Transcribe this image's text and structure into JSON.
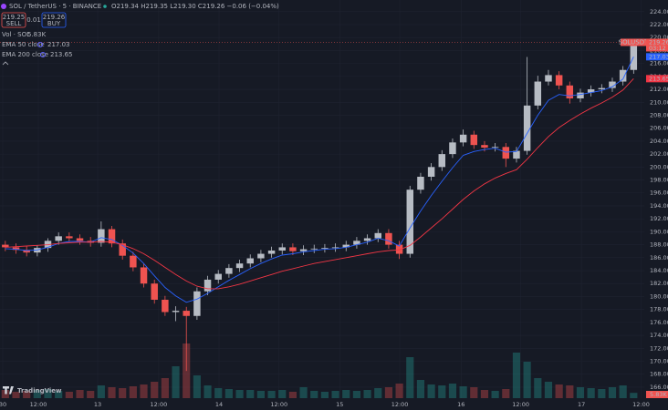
{
  "header": {
    "symbol": "SOL / TetherUS · 5 · BINANCE",
    "o_label": "O",
    "o": "219.34",
    "h_label": "H",
    "h": "219.35",
    "l_label": "L",
    "l": "219.30",
    "c_label": "C",
    "c": "219.26",
    "change": "−0.06 (−0.04%)"
  },
  "trade": {
    "sell_price": "219.25",
    "sell": "SELL",
    "spread": "0.01",
    "buy_price": "219.26",
    "buy": "BUY"
  },
  "branding": "TradingView",
  "chart_data": {
    "type": "candlestick",
    "symbol_tag": "SOLUSDT",
    "countdown": "03:12",
    "up_color": "#b7bcc4",
    "down_color": "#ef5350",
    "open": [
      188.0,
      187.6,
      187.2,
      186.8,
      187.5,
      188.6,
      189.3,
      189.0,
      188.6,
      188.3,
      190.4,
      188.2,
      186.3,
      184.5,
      182.0,
      179.5,
      177.6,
      177.8,
      177.0,
      180.8,
      182.6,
      183.5,
      184.4,
      185.1,
      185.9,
      186.6,
      187.1,
      187.6,
      187.0,
      187.3,
      187.4,
      187.5,
      187.6,
      188.0,
      188.6,
      189.0,
      189.8,
      188.0,
      186.6,
      196.5,
      198.5,
      200.0,
      202.0,
      203.8,
      205.0,
      203.4,
      203.0,
      203.1,
      201.3,
      202.5,
      209.5,
      213.2,
      214.2,
      212.6,
      210.6,
      211.5,
      212.0,
      212.2,
      213.2,
      215.0
    ],
    "high": [
      188.6,
      188.2,
      187.8,
      187.9,
      189.0,
      189.9,
      189.9,
      189.6,
      189.2,
      191.6,
      190.9,
      188.8,
      186.9,
      185.1,
      182.6,
      180.1,
      178.5,
      178.4,
      181.4,
      183.2,
      184.1,
      185.0,
      185.7,
      186.5,
      187.2,
      187.7,
      188.2,
      188.2,
      187.9,
      188.0,
      188.1,
      188.2,
      188.6,
      189.2,
      189.6,
      190.4,
      190.4,
      188.6,
      197.1,
      199.1,
      200.6,
      202.6,
      204.4,
      205.8,
      205.6,
      204.0,
      203.7,
      203.7,
      203.1,
      217.0,
      214.1,
      215.0,
      214.8,
      213.2,
      212.1,
      212.6,
      212.8,
      213.8,
      215.6,
      219.8
    ],
    "low": [
      187.0,
      186.6,
      186.2,
      186.2,
      186.9,
      188.0,
      188.4,
      188.0,
      187.7,
      187.7,
      187.6,
      185.7,
      183.9,
      181.4,
      178.9,
      177.0,
      176.2,
      168.5,
      176.4,
      180.2,
      182.0,
      182.9,
      183.8,
      184.5,
      185.3,
      186.0,
      186.5,
      186.4,
      186.4,
      186.7,
      186.8,
      186.9,
      187.0,
      187.4,
      188.0,
      188.4,
      187.4,
      185.8,
      186.0,
      195.9,
      197.9,
      199.4,
      201.4,
      203.2,
      202.8,
      202.4,
      202.4,
      200.0,
      200.7,
      201.9,
      208.9,
      212.6,
      212.0,
      209.8,
      210.0,
      210.9,
      211.4,
      211.6,
      212.6,
      214.4
    ],
    "close": [
      187.6,
      187.2,
      186.8,
      187.5,
      188.6,
      189.3,
      189.0,
      188.6,
      188.3,
      190.4,
      188.2,
      186.3,
      184.5,
      182.0,
      179.5,
      177.6,
      177.8,
      177.0,
      180.8,
      182.6,
      183.5,
      184.4,
      185.1,
      185.9,
      186.6,
      187.1,
      187.6,
      187.0,
      187.3,
      187.4,
      187.5,
      187.6,
      188.0,
      188.6,
      189.0,
      189.8,
      188.0,
      186.6,
      196.5,
      198.5,
      200.0,
      202.0,
      203.8,
      205.0,
      203.4,
      203.0,
      203.1,
      201.3,
      202.5,
      209.5,
      213.2,
      214.2,
      212.6,
      210.6,
      211.5,
      212.0,
      212.2,
      213.2,
      215.0,
      219.26
    ],
    "series": [
      {
        "name": "EMA 50 close",
        "color": "#2962ff",
        "values": [
          187.4,
          187.3,
          187.1,
          187.2,
          187.6,
          188.2,
          188.5,
          188.5,
          188.4,
          189.1,
          188.8,
          187.9,
          186.7,
          185.1,
          183.2,
          181.4,
          180.1,
          179.1,
          179.6,
          180.5,
          181.5,
          182.5,
          183.4,
          184.3,
          185.1,
          185.8,
          186.4,
          186.6,
          186.9,
          187.1,
          187.3,
          187.4,
          187.6,
          188.0,
          188.4,
          189.0,
          188.6,
          187.8,
          190.6,
          193.2,
          195.6,
          197.8,
          199.9,
          201.8,
          202.4,
          202.7,
          202.9,
          202.3,
          202.4,
          205.2,
          208.0,
          210.3,
          211.2,
          211.0,
          211.2,
          211.5,
          211.8,
          212.4,
          213.6,
          217.03
        ]
      },
      {
        "name": "EMA 200 close",
        "color": "#f23645",
        "values": [
          187.6,
          187.7,
          187.8,
          187.9,
          188.0,
          188.2,
          188.3,
          188.4,
          188.4,
          188.5,
          188.4,
          188.0,
          187.4,
          186.6,
          185.6,
          184.5,
          183.4,
          182.4,
          181.6,
          181.2,
          181.2,
          181.5,
          181.9,
          182.4,
          182.9,
          183.4,
          183.9,
          184.3,
          184.7,
          185.1,
          185.4,
          185.7,
          186.0,
          186.3,
          186.6,
          186.9,
          187.1,
          187.2,
          187.9,
          189.2,
          190.6,
          192.0,
          193.5,
          195.0,
          196.3,
          197.4,
          198.3,
          199.0,
          199.6,
          201.2,
          203.0,
          204.7,
          206.1,
          207.2,
          208.2,
          209.1,
          209.9,
          210.8,
          211.9,
          213.65
        ]
      }
    ],
    "volume": {
      "name": "Vol · SOL",
      "last_label": "5.83K",
      "ylim": [
        0,
        120000
      ],
      "values": [
        9000,
        7000,
        8000,
        9000,
        10000,
        8000,
        7000,
        9000,
        8000,
        14000,
        12000,
        11000,
        13000,
        15000,
        18000,
        22000,
        35000,
        60000,
        25000,
        14000,
        11000,
        10000,
        9000,
        9000,
        8000,
        8000,
        9000,
        7000,
        12000,
        8000,
        7000,
        8000,
        9000,
        8000,
        9000,
        11000,
        12000,
        16000,
        45000,
        20000,
        15000,
        14000,
        16000,
        13000,
        12000,
        9000,
        8000,
        10000,
        50000,
        40000,
        22000,
        18000,
        15000,
        14000,
        12000,
        11000,
        10000,
        12000,
        14000,
        5830
      ]
    },
    "xlim": [
      -0.5,
      60
    ],
    "xticks": [
      {
        "value": -0.24,
        "label": "30"
      },
      {
        "value": 3.1,
        "label": "12:00"
      },
      {
        "value": 8.67,
        "label": "13"
      },
      {
        "value": 14.4,
        "label": "12:00"
      },
      {
        "value": 20.07,
        "label": "14"
      },
      {
        "value": 25.7,
        "label": "12:00"
      },
      {
        "value": 31.4,
        "label": "15"
      },
      {
        "value": 37.04,
        "label": "12:00"
      },
      {
        "value": 42.8,
        "label": "16"
      },
      {
        "value": 48.4,
        "label": "12:00"
      },
      {
        "value": 54.1,
        "label": "17"
      },
      {
        "value": 59.7,
        "label": "12:00"
      }
    ],
    "ylim": [
      164.3,
      225.8
    ],
    "yticks": [
      {
        "value": 166,
        "label": "166.00"
      },
      {
        "value": 168,
        "label": "168.00"
      },
      {
        "value": 170,
        "label": "170.00"
      },
      {
        "value": 172,
        "label": "172.00"
      },
      {
        "value": 174,
        "label": "174.00"
      },
      {
        "value": 176,
        "label": "176.00"
      },
      {
        "value": 178,
        "label": "178.00"
      },
      {
        "value": 180,
        "label": "180.00"
      },
      {
        "value": 182,
        "label": "182.00"
      },
      {
        "value": 184,
        "label": "184.00"
      },
      {
        "value": 186,
        "label": "186.00"
      },
      {
        "value": 188,
        "label": "188.00"
      },
      {
        "value": 190,
        "label": "190.00"
      },
      {
        "value": 192,
        "label": "192.00"
      },
      {
        "value": 194,
        "label": "194.00"
      },
      {
        "value": 196,
        "label": "196.00"
      },
      {
        "value": 198,
        "label": "198.00"
      },
      {
        "value": 200,
        "label": "200.00"
      },
      {
        "value": 202,
        "label": "202.00"
      },
      {
        "value": 204,
        "label": "204.00"
      },
      {
        "value": 206,
        "label": "206.00"
      },
      {
        "value": 208,
        "label": "208.00"
      },
      {
        "value": 210,
        "label": "210.00"
      },
      {
        "value": 212,
        "label": "212.00"
      },
      {
        "value": 214,
        "label": "214.00"
      },
      {
        "value": 216,
        "label": "216.00"
      },
      {
        "value": 218,
        "label": "218.00"
      },
      {
        "value": 220,
        "label": "220.00"
      },
      {
        "value": 222,
        "label": "222.00"
      },
      {
        "value": 224,
        "label": "224.00"
      }
    ],
    "grid": true
  }
}
